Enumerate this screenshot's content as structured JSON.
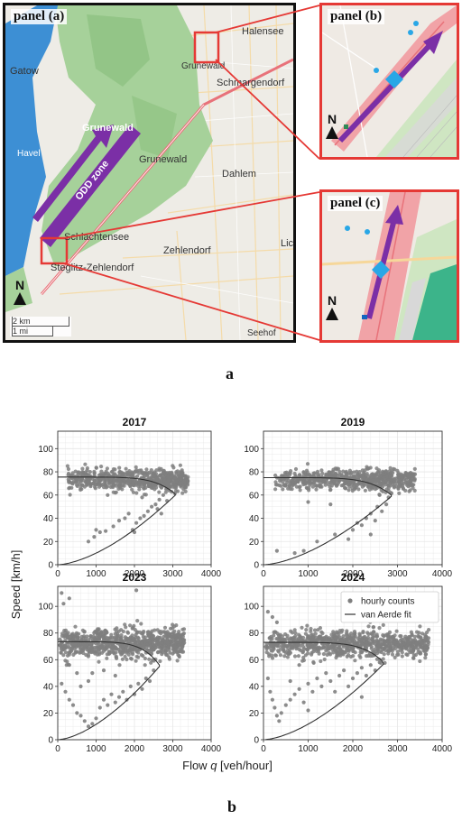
{
  "figure": {
    "label_a": "a",
    "label_b": "b"
  },
  "map": {
    "panel_a_label": "panel (a)",
    "panel_b_label": "panel (b)",
    "panel_c_label": "panel (c)",
    "odd_zone_label": "ODD zone",
    "north_label": "N",
    "scale_km": "2 km",
    "scale_mi": "1 mi",
    "place_names": [
      "Halensee",
      "Gatow",
      "Grunewald",
      "Schmargendorf",
      "Havel",
      "Grunewald",
      "Grunewald",
      "Dahlem",
      "Schlachtensee",
      "Zehlendorf",
      "Lic",
      "Steglitz-Zehlendorf",
      "Seehof"
    ],
    "colors": {
      "forest": "#a6d19a",
      "forest_dark": "#8cc07f",
      "water": "#3d8fd4",
      "urban": "#eeece6",
      "arrow": "#7b2fa6",
      "inset_border": "#e53935",
      "highway": "#e8727a",
      "diamond": "#29a7e6"
    }
  },
  "chart_data": [
    {
      "type": "scatter",
      "title": "2017",
      "xlim": [
        0,
        4000
      ],
      "ylim": [
        0,
        115
      ],
      "xticks": [
        0,
        1000,
        2000,
        3000,
        4000
      ],
      "yticks": [
        0,
        20,
        40,
        60,
        80,
        100
      ],
      "grid": true,
      "free_flow": {
        "qmin": 250,
        "qmax": 3400,
        "center": 73,
        "spread": 8,
        "count": 650
      },
      "congested": [
        [
          800,
          20
        ],
        [
          950,
          24
        ],
        [
          1100,
          28
        ],
        [
          1250,
          29
        ],
        [
          1450,
          33
        ],
        [
          1600,
          38
        ],
        [
          1750,
          40
        ],
        [
          1850,
          44
        ],
        [
          1950,
          30
        ],
        [
          2050,
          36
        ],
        [
          2150,
          40
        ],
        [
          2250,
          42
        ],
        [
          2350,
          46
        ],
        [
          2450,
          50
        ],
        [
          2550,
          52
        ],
        [
          2650,
          56
        ],
        [
          2750,
          60
        ],
        [
          2850,
          55
        ],
        [
          2900,
          64
        ],
        [
          1300,
          60
        ],
        [
          1500,
          62
        ],
        [
          2200,
          58
        ],
        [
          2600,
          48
        ],
        [
          2000,
          28
        ],
        [
          1000,
          30
        ],
        [
          2700,
          44
        ]
      ],
      "fit": {
        "vf": 75.5,
        "cap": 3060,
        "vc": 61,
        "kj": 0.17
      }
    },
    {
      "type": "scatter",
      "title": "2019",
      "xlim": [
        0,
        4000
      ],
      "ylim": [
        0,
        115
      ],
      "xticks": [
        0,
        1000,
        2000,
        3000,
        4000
      ],
      "yticks": [
        0,
        20,
        40,
        60,
        80,
        100
      ],
      "grid": true,
      "free_flow": {
        "qmin": 250,
        "qmax": 3400,
        "center": 73,
        "spread": 8,
        "count": 650
      },
      "congested": [
        [
          300,
          12
        ],
        [
          700,
          10
        ],
        [
          900,
          12
        ],
        [
          1200,
          20
        ],
        [
          1600,
          26
        ],
        [
          1900,
          22
        ],
        [
          2000,
          30
        ],
        [
          2100,
          36
        ],
        [
          2200,
          34
        ],
        [
          2300,
          40
        ],
        [
          2400,
          44
        ],
        [
          2500,
          38
        ],
        [
          2550,
          50
        ],
        [
          2650,
          46
        ],
        [
          2750,
          52
        ],
        [
          2800,
          58
        ],
        [
          2850,
          62
        ],
        [
          1000,
          54
        ],
        [
          1500,
          52
        ],
        [
          2400,
          26
        ],
        [
          2600,
          60
        ]
      ],
      "fit": {
        "vf": 75,
        "cap": 2860,
        "vc": 60,
        "kj": 0.17
      }
    },
    {
      "type": "scatter",
      "title": "2023",
      "xlim": [
        0,
        4000
      ],
      "ylim": [
        0,
        115
      ],
      "xticks": [
        0,
        1000,
        2000,
        3000,
        4000
      ],
      "yticks": [
        0,
        20,
        40,
        60,
        80,
        100
      ],
      "grid": true,
      "ylabel": "Speed [km/h]",
      "free_flow": {
        "qmin": 50,
        "qmax": 3300,
        "center": 72,
        "spread": 10,
        "count": 800
      },
      "congested": [
        [
          100,
          110
        ],
        [
          150,
          102
        ],
        [
          300,
          106
        ],
        [
          2050,
          112
        ],
        [
          100,
          42
        ],
        [
          200,
          36
        ],
        [
          300,
          30
        ],
        [
          400,
          26
        ],
        [
          500,
          20
        ],
        [
          600,
          18
        ],
        [
          700,
          14
        ],
        [
          800,
          10
        ],
        [
          900,
          12
        ],
        [
          1000,
          16
        ],
        [
          1100,
          24
        ],
        [
          1200,
          30
        ],
        [
          1300,
          26
        ],
        [
          1400,
          34
        ],
        [
          1500,
          28
        ],
        [
          1600,
          32
        ],
        [
          1700,
          36
        ],
        [
          1800,
          30
        ],
        [
          1900,
          40
        ],
        [
          2000,
          34
        ],
        [
          2100,
          42
        ],
        [
          2200,
          38
        ],
        [
          2300,
          46
        ],
        [
          2400,
          44
        ],
        [
          2500,
          52
        ],
        [
          600,
          40
        ],
        [
          900,
          50
        ],
        [
          1200,
          52
        ],
        [
          300,
          56
        ],
        [
          500,
          50
        ],
        [
          800,
          44
        ],
        [
          1500,
          48
        ]
      ],
      "fit": {
        "vf": 73.5,
        "cap": 2650,
        "vc": 56,
        "kj": 0.17
      }
    },
    {
      "type": "scatter",
      "title": "2024",
      "xlim": [
        0,
        4000
      ],
      "ylim": [
        0,
        115
      ],
      "xticks": [
        0,
        1000,
        2000,
        3000,
        4000
      ],
      "yticks": [
        0,
        20,
        40,
        60,
        80,
        100
      ],
      "grid": true,
      "legend_position": "top-right",
      "legend": [
        "hourly counts",
        "van Aerde fit"
      ],
      "free_flow": {
        "qmin": 50,
        "qmax": 3700,
        "center": 72,
        "spread": 9,
        "count": 850
      },
      "congested": [
        [
          100,
          96
        ],
        [
          200,
          92
        ],
        [
          300,
          88
        ],
        [
          100,
          46
        ],
        [
          150,
          36
        ],
        [
          200,
          30
        ],
        [
          250,
          24
        ],
        [
          300,
          18
        ],
        [
          350,
          14
        ],
        [
          400,
          20
        ],
        [
          500,
          26
        ],
        [
          600,
          30
        ],
        [
          700,
          34
        ],
        [
          800,
          38
        ],
        [
          900,
          28
        ],
        [
          1000,
          42
        ],
        [
          1100,
          36
        ],
        [
          1200,
          46
        ],
        [
          1300,
          40
        ],
        [
          1400,
          50
        ],
        [
          1500,
          44
        ],
        [
          1600,
          36
        ],
        [
          1700,
          48
        ],
        [
          1800,
          52
        ],
        [
          1900,
          40
        ],
        [
          2000,
          46
        ],
        [
          2100,
          50
        ],
        [
          2200,
          54
        ],
        [
          2300,
          48
        ],
        [
          2400,
          56
        ],
        [
          2500,
          52
        ],
        [
          2600,
          58
        ],
        [
          2200,
          32
        ],
        [
          1000,
          22
        ],
        [
          600,
          44
        ],
        [
          800,
          56
        ],
        [
          3200,
          64
        ]
      ],
      "fit": {
        "vf": 73,
        "cap": 2690,
        "vc": 58,
        "kj": 0.17
      }
    }
  ],
  "chart_shared": {
    "xlabel": "Flow q [veh/hour]",
    "xlabel_prefix": "Flow ",
    "xlabel_var": "q",
    "xlabel_suffix": " [veh/hour]",
    "point_color": "#7f7f7f",
    "fit_color": "#333333"
  }
}
